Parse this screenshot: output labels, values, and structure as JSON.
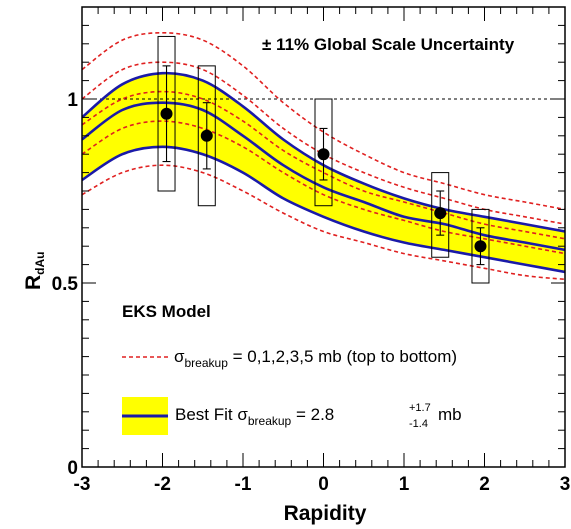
{
  "chart_data": {
    "type": "line",
    "title": "",
    "xlabel": "Rapidity",
    "ylabel": "R",
    "ylabel_sub": "dAu",
    "xlim": [
      -3,
      3
    ],
    "ylim": [
      0,
      1.25
    ],
    "x_ticks": [
      -3,
      -2,
      -1,
      0,
      1,
      2,
      3
    ],
    "x_tick_labels": [
      "-3",
      "-2",
      "-1",
      "0",
      "1",
      "2",
      "3"
    ],
    "y_ticks": [
      0,
      0.5,
      1
    ],
    "y_tick_labels": [
      "0",
      "0.5",
      "1"
    ],
    "reference_line": {
      "y": 1.0,
      "style": "dashed"
    },
    "annotations": {
      "global_scale": "± 11% Global Scale Uncertainty",
      "model": "EKS Model",
      "legend_dashed": {
        "symbol": "σ",
        "sub": "breakup",
        "text": " = 0,1,2,3,5 mb (top to bottom)"
      },
      "legend_best_fit": {
        "prefix": "Best Fit ",
        "symbol": "σ",
        "sub": "breakup",
        "text": " = 2.8 ",
        "sup": "+1.7",
        "subs": "-1.4",
        "unit": " mb"
      }
    },
    "colors": {
      "band_fill": "#ffff00",
      "best_fit_line": "#1a1aa8",
      "dashed_lines": "#e02020",
      "points": "#000000"
    },
    "x": [
      -3.0,
      -2.5,
      -2.0,
      -1.5,
      -1.0,
      -0.5,
      0.0,
      0.5,
      1.0,
      1.5,
      2.0,
      2.5,
      3.0
    ],
    "dashed_series": [
      {
        "sigma": 0,
        "values": [
          1.08,
          1.16,
          1.18,
          1.16,
          1.09,
          0.99,
          0.91,
          0.85,
          0.8,
          0.77,
          0.74,
          0.72,
          0.7
        ]
      },
      {
        "sigma": 1,
        "values": [
          1.0,
          1.08,
          1.1,
          1.08,
          1.01,
          0.92,
          0.85,
          0.8,
          0.76,
          0.73,
          0.7,
          0.68,
          0.66
        ]
      },
      {
        "sigma": 2,
        "values": [
          0.93,
          1.0,
          1.02,
          1.0,
          0.94,
          0.86,
          0.8,
          0.75,
          0.72,
          0.69,
          0.66,
          0.64,
          0.62
        ]
      },
      {
        "sigma": 3,
        "values": [
          0.85,
          0.92,
          0.94,
          0.92,
          0.87,
          0.8,
          0.74,
          0.7,
          0.67,
          0.64,
          0.62,
          0.6,
          0.58
        ]
      },
      {
        "sigma": 5,
        "values": [
          0.74,
          0.8,
          0.82,
          0.8,
          0.75,
          0.69,
          0.64,
          0.61,
          0.58,
          0.56,
          0.54,
          0.52,
          0.51
        ]
      }
    ],
    "best_fit": {
      "upper": [
        0.95,
        1.04,
        1.07,
        1.05,
        0.98,
        0.89,
        0.82,
        0.77,
        0.73,
        0.7,
        0.68,
        0.66,
        0.64
      ],
      "central": [
        0.89,
        0.97,
        0.99,
        0.97,
        0.9,
        0.82,
        0.76,
        0.72,
        0.68,
        0.66,
        0.63,
        0.61,
        0.59
      ],
      "lower": [
        0.78,
        0.85,
        0.87,
        0.85,
        0.8,
        0.73,
        0.68,
        0.64,
        0.61,
        0.59,
        0.57,
        0.55,
        0.53
      ]
    },
    "data_points": [
      {
        "x": -1.95,
        "y": 0.96,
        "err_low": 0.13,
        "err_high": 0.13,
        "sys_low": 0.75,
        "sys_high": 1.17
      },
      {
        "x": -1.45,
        "y": 0.9,
        "err_low": 0.09,
        "err_high": 0.09,
        "sys_low": 0.71,
        "sys_high": 1.09
      },
      {
        "x": 0.0,
        "y": 0.85,
        "err_low": 0.07,
        "err_high": 0.07,
        "sys_low": 0.71,
        "sys_high": 1.0
      },
      {
        "x": 1.45,
        "y": 0.69,
        "err_low": 0.06,
        "err_high": 0.06,
        "sys_low": 0.57,
        "sys_high": 0.8
      },
      {
        "x": 1.95,
        "y": 0.6,
        "err_low": 0.05,
        "err_high": 0.05,
        "sys_low": 0.5,
        "sys_high": 0.7
      }
    ]
  }
}
